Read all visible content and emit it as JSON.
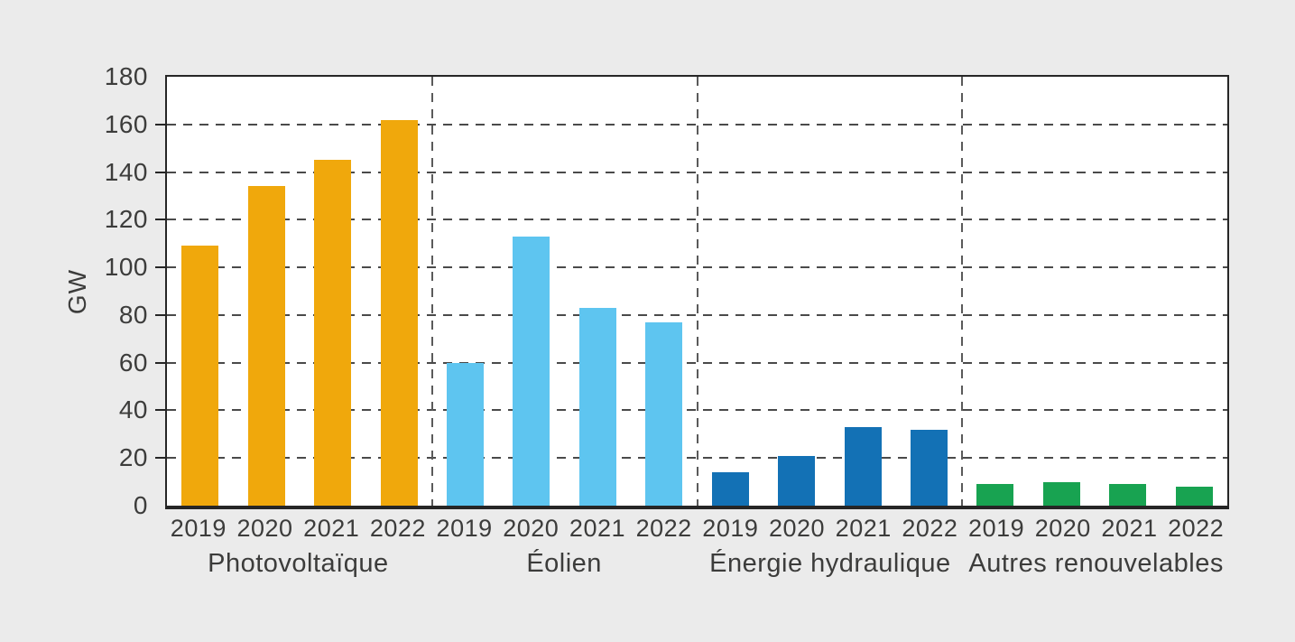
{
  "page": {
    "background_color": "#ebebeb",
    "plot_background_color": "#ffffff",
    "axis_color": "#262626",
    "grid_color": "#4a4a4a",
    "text_color": "#3c3c3b"
  },
  "chart_data": {
    "type": "bar",
    "title": "",
    "xlabel": "",
    "ylabel": "GW",
    "ylim": [
      0,
      180
    ],
    "yticks": [
      0,
      20,
      40,
      60,
      80,
      100,
      120,
      140,
      160,
      180
    ],
    "grid": "horizontal dashed lines every 20 GW; dashed vertical separators between category groups",
    "legend_position": "none",
    "years": [
      "2019",
      "2020",
      "2021",
      "2022"
    ],
    "groups": [
      {
        "label": "Photovoltaïque",
        "color": "#F0A80C",
        "values": [
          109,
          134,
          145,
          162
        ]
      },
      {
        "label": "Éolien",
        "color": "#5EC5F0",
        "values": [
          60,
          113,
          83,
          77
        ]
      },
      {
        "label": "Énergie hydraulique",
        "color": "#1371B5",
        "values": [
          14,
          21,
          33,
          32
        ]
      },
      {
        "label": "Autres renouvelables",
        "color": "#18A351",
        "values": [
          9,
          10,
          9,
          8
        ]
      }
    ]
  }
}
